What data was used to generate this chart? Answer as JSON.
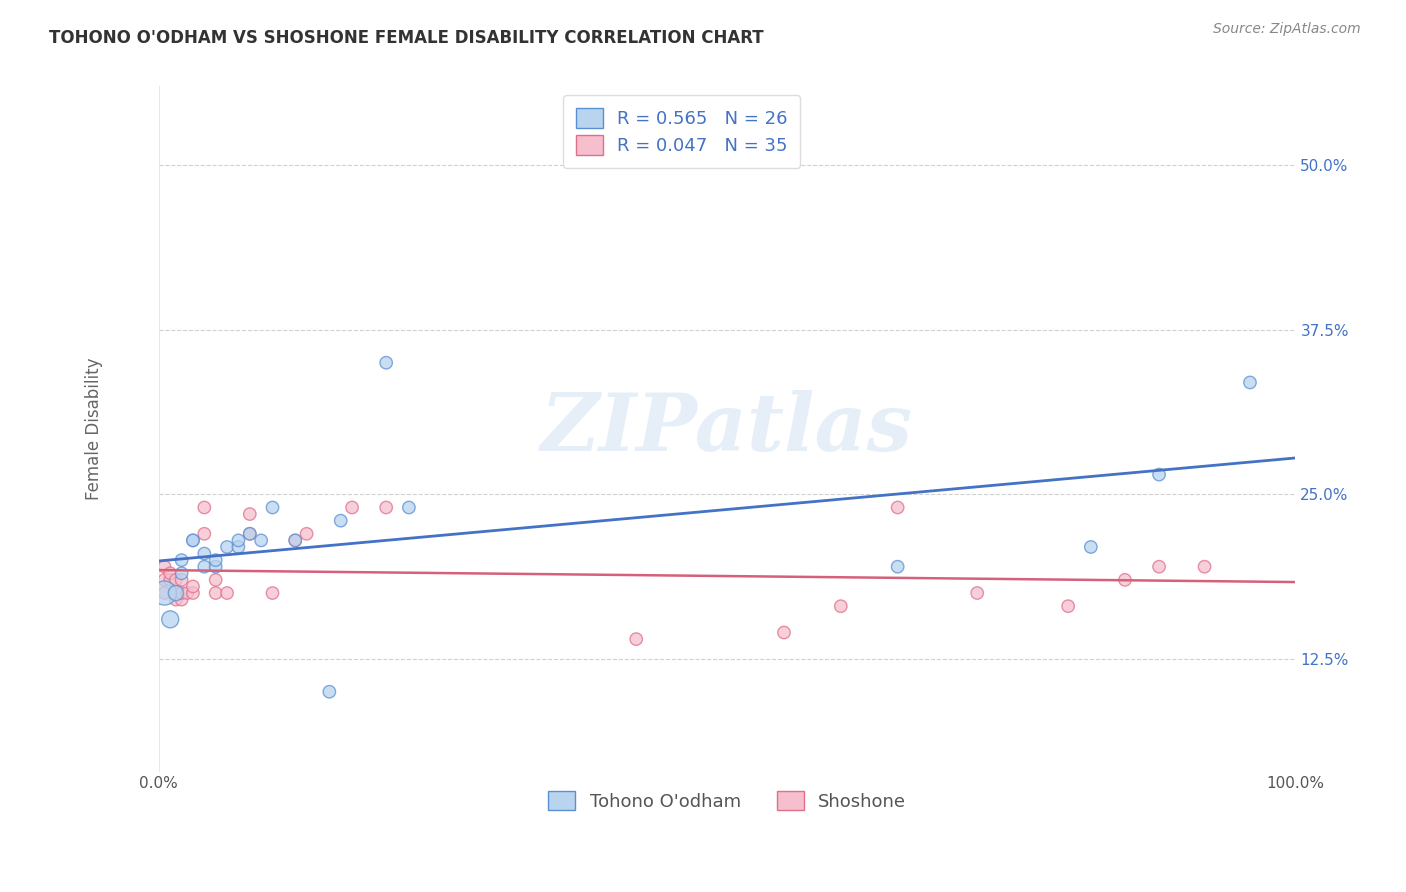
{
  "title": "TOHONO O'ODHAM VS SHOSHONE FEMALE DISABILITY CORRELATION CHART",
  "source": "Source: ZipAtlas.com",
  "ylabel": "Female Disability",
  "xlim": [
    0.0,
    1.0
  ],
  "ylim": [
    0.04,
    0.56
  ],
  "xticks": [
    0.0,
    0.25,
    0.5,
    0.75,
    1.0
  ],
  "xtick_labels": [
    "0.0%",
    "",
    "",
    "",
    "100.0%"
  ],
  "ytick_positions": [
    0.125,
    0.25,
    0.375,
    0.5
  ],
  "ytick_labels": [
    "12.5%",
    "25.0%",
    "37.5%",
    "50.0%"
  ],
  "tohono_R": 0.565,
  "tohono_N": 26,
  "shoshone_R": 0.047,
  "shoshone_N": 35,
  "tohono_color": "#b8d4ee",
  "shoshone_color": "#f5bfce",
  "tohono_edge_color": "#5b8fd4",
  "shoshone_edge_color": "#e0708a",
  "tohono_line_color": "#4472c4",
  "shoshone_line_color": "#d4607a",
  "legend_text_color": "#4472c4",
  "background_color": "#ffffff",
  "watermark": "ZIPatlas",
  "tohono_x": [
    0.005,
    0.01,
    0.015,
    0.02,
    0.02,
    0.03,
    0.03,
    0.04,
    0.04,
    0.05,
    0.05,
    0.06,
    0.07,
    0.07,
    0.08,
    0.09,
    0.1,
    0.12,
    0.15,
    0.16,
    0.2,
    0.22,
    0.65,
    0.82,
    0.88,
    0.96
  ],
  "tohono_y": [
    0.175,
    0.155,
    0.175,
    0.19,
    0.2,
    0.215,
    0.215,
    0.205,
    0.195,
    0.195,
    0.2,
    0.21,
    0.21,
    0.215,
    0.22,
    0.215,
    0.24,
    0.215,
    0.1,
    0.23,
    0.35,
    0.24,
    0.195,
    0.21,
    0.265,
    0.335
  ],
  "tohono_sizes": [
    300,
    150,
    120,
    80,
    80,
    80,
    80,
    80,
    80,
    80,
    80,
    80,
    80,
    80,
    80,
    80,
    80,
    80,
    80,
    80,
    80,
    80,
    80,
    80,
    80,
    80
  ],
  "shoshone_x": [
    0.005,
    0.005,
    0.005,
    0.01,
    0.01,
    0.015,
    0.015,
    0.015,
    0.02,
    0.02,
    0.02,
    0.025,
    0.03,
    0.03,
    0.04,
    0.04,
    0.05,
    0.05,
    0.06,
    0.08,
    0.08,
    0.1,
    0.12,
    0.13,
    0.17,
    0.2,
    0.42,
    0.55,
    0.6,
    0.65,
    0.72,
    0.8,
    0.85,
    0.88,
    0.92
  ],
  "shoshone_y": [
    0.185,
    0.195,
    0.175,
    0.185,
    0.19,
    0.185,
    0.17,
    0.175,
    0.185,
    0.17,
    0.175,
    0.175,
    0.175,
    0.18,
    0.22,
    0.24,
    0.175,
    0.185,
    0.175,
    0.22,
    0.235,
    0.175,
    0.215,
    0.22,
    0.24,
    0.24,
    0.14,
    0.145,
    0.165,
    0.24,
    0.175,
    0.165,
    0.185,
    0.195,
    0.195
  ],
  "shoshone_sizes": [
    80,
    80,
    80,
    80,
    80,
    80,
    80,
    80,
    80,
    80,
    80,
    80,
    80,
    80,
    80,
    80,
    80,
    80,
    80,
    80,
    80,
    80,
    80,
    80,
    80,
    80,
    80,
    80,
    80,
    80,
    80,
    80,
    80,
    80,
    80
  ]
}
